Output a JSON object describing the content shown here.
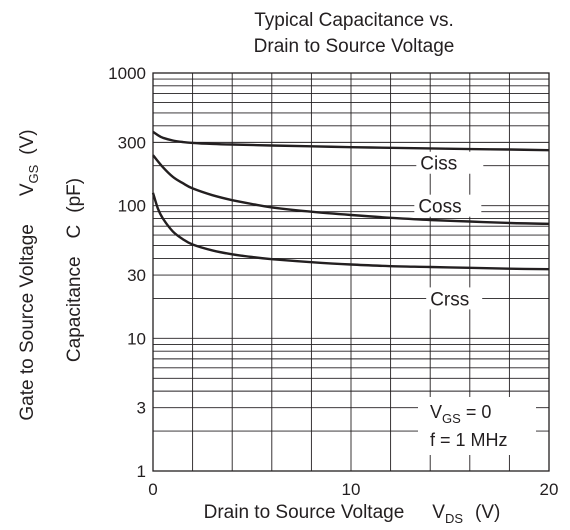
{
  "chart_data": {
    "type": "line",
    "title": [
      "Typical Capacitance vs.",
      "Drain to Source Voltage"
    ],
    "xlabel": {
      "main": "Drain to Source Voltage",
      "symbol": "V",
      "sub": "DS",
      "unit": "(V)"
    },
    "ylabel": {
      "main": "Capacitance",
      "symbol": "C",
      "unit": "(pF)"
    },
    "ylabel_outer": {
      "main": "Gate to Source Voltage",
      "symbol": "V",
      "sub": "GS",
      "unit": "(V)"
    },
    "xlim": [
      0,
      20
    ],
    "ylim": [
      1,
      1000
    ],
    "yscale": "log",
    "grid": true,
    "x_ticks": [
      "0",
      "10",
      "20"
    ],
    "y_ticks": [
      "1",
      "3",
      "10",
      "30",
      "100",
      "300",
      "1000"
    ],
    "series": [
      {
        "name": "Ciss",
        "x": [
          0,
          0.25,
          0.5,
          1,
          1.5,
          2,
          3,
          4,
          6,
          8,
          10,
          12,
          14,
          16,
          18,
          20
        ],
        "values": [
          360,
          340,
          325,
          310,
          302,
          297,
          292,
          289,
          284,
          280,
          276,
          273,
          270,
          267,
          265,
          262
        ]
      },
      {
        "name": "Coss",
        "x": [
          0,
          0.5,
          1,
          1.5,
          2,
          3,
          4,
          5,
          6,
          8,
          10,
          12,
          14,
          16,
          18,
          20
        ],
        "values": [
          240,
          195,
          165,
          148,
          135,
          120,
          110,
          103,
          97,
          90,
          85,
          81,
          78,
          76,
          74,
          73
        ]
      },
      {
        "name": "Crss",
        "x": [
          0,
          0.25,
          0.5,
          1,
          1.5,
          2,
          3,
          4,
          5,
          6,
          8,
          10,
          12,
          14,
          16,
          18,
          20
        ],
        "values": [
          125,
          95,
          80,
          64,
          56,
          51,
          46,
          43,
          41,
          39.5,
          37.5,
          36,
          35,
          34.5,
          34,
          33.5,
          33.2
        ]
      }
    ],
    "annotation": {
      "line1_symbol": "V",
      "line1_sub": "GS",
      "line1_value": " = 0",
      "line2": "f = 1 MHz"
    }
  },
  "colors": {
    "ink": "#231f20",
    "background": "#ffffff"
  }
}
